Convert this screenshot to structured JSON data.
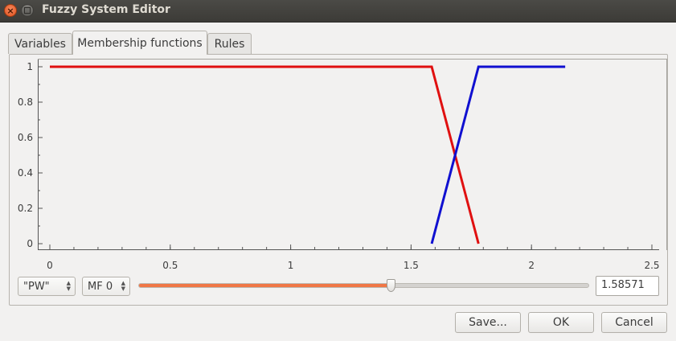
{
  "window": {
    "title": "Fuzzy System Editor"
  },
  "tabs": [
    {
      "label": "Variables"
    },
    {
      "label": "Membership functions"
    },
    {
      "label": "Rules"
    }
  ],
  "variable_select": {
    "value": "\"PW\""
  },
  "mf_select": {
    "value": "MF 0"
  },
  "slider": {
    "value": 1.58571,
    "min": 0,
    "max": 2.5
  },
  "value_field": {
    "value": "1.58571"
  },
  "buttons": {
    "save": "Save...",
    "ok": "OK",
    "cancel": "Cancel"
  },
  "colors": {
    "mf0": "#e01010",
    "mf1": "#1010d0",
    "slider_fill": "#f07746"
  },
  "chart_data": {
    "type": "line",
    "xlim": [
      0,
      2.5
    ],
    "ylim": [
      0,
      1
    ],
    "x_ticks": [
      "0",
      "0.5",
      "1",
      "1.5",
      "2",
      "2.5"
    ],
    "y_ticks": [
      "0",
      "0.2",
      "0.4",
      "0.6",
      "0.8",
      "1"
    ],
    "series": [
      {
        "color": "#e01010",
        "points": [
          [
            0,
            1
          ],
          [
            1.58571,
            1
          ],
          [
            1.78,
            0
          ]
        ]
      },
      {
        "color": "#1010d0",
        "points": [
          [
            1.58571,
            0
          ],
          [
            1.78,
            1
          ],
          [
            2.14,
            1
          ]
        ]
      }
    ]
  }
}
